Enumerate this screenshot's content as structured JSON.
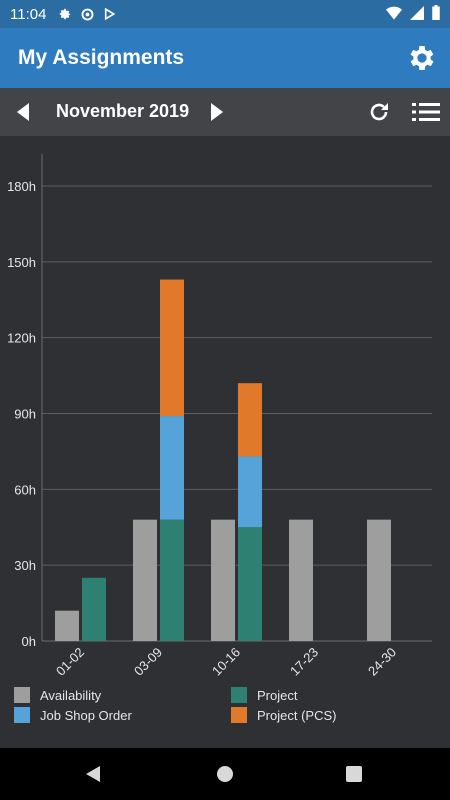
{
  "status": {
    "time": "11:04"
  },
  "appbar": {
    "title": "My Assignments"
  },
  "nav": {
    "month": "November 2019"
  },
  "chart_data": {
    "type": "bar",
    "categories": [
      "01-02",
      "03-09",
      "10-16",
      "17-23",
      "24-30"
    ],
    "ylim": [
      0,
      180
    ],
    "yticks": [
      0,
      30,
      60,
      90,
      120,
      150,
      180
    ],
    "ytick_labels": [
      "0h",
      "30h",
      "60h",
      "90h",
      "120h",
      "150h",
      "180h"
    ],
    "series": [
      {
        "name": "Availability",
        "color": "#9e9e9e",
        "values": [
          12,
          48,
          48,
          48,
          48
        ]
      },
      {
        "name": "Project",
        "color": "#2e8073",
        "values": [
          25,
          48,
          45,
          0,
          0
        ]
      },
      {
        "name": "Job Shop Order",
        "color": "#55a3d9",
        "values": [
          0,
          41,
          28,
          0,
          0
        ]
      },
      {
        "name": "Project (PCS)",
        "color": "#e07a2a",
        "values": [
          0,
          54,
          29,
          0,
          0
        ]
      }
    ],
    "stacks": [
      [
        "Availability"
      ],
      [
        "Project",
        "Job Shop Order",
        "Project (PCS)"
      ]
    ],
    "grid": true,
    "legend_position": "bottom"
  },
  "legend": [
    {
      "label": "Availability",
      "color": "#9e9e9e"
    },
    {
      "label": "Project",
      "color": "#2e8073"
    },
    {
      "label": "Job Shop Order",
      "color": "#55a3d9"
    },
    {
      "label": "Project (PCS)",
      "color": "#e07a2a"
    }
  ],
  "icons": {
    "gear": "gear-icon",
    "prev": "chevron-left-icon",
    "next": "chevron-right-icon",
    "refresh": "refresh-icon",
    "list": "list-icon"
  }
}
